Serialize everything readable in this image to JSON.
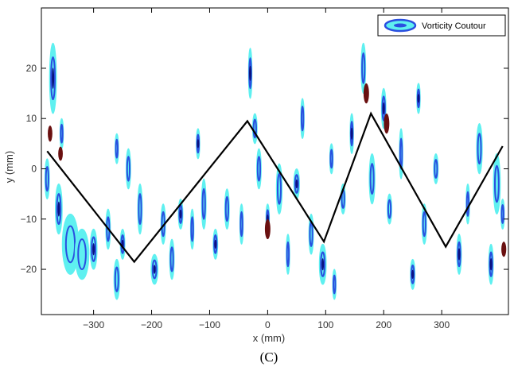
{
  "chart_data": {
    "type": "line",
    "title": "",
    "caption": "(C)",
    "xlabel": "x (mm)",
    "ylabel": "y (mm)",
    "xlim": [
      -390,
      415
    ],
    "ylim": [
      -29,
      32
    ],
    "x_ticks": [
      -300,
      -200,
      -100,
      0,
      100,
      200,
      300
    ],
    "x_tick_labels": [
      "−300",
      "−200",
      "−100",
      "0",
      "100",
      "200",
      "300"
    ],
    "y_ticks": [
      -20,
      -10,
      0,
      10,
      20
    ],
    "y_tick_labels": [
      "−20",
      "−10",
      "0",
      "10",
      "20"
    ],
    "grid": false,
    "legend": {
      "placement": "top-right",
      "entries": [
        "Vorticity Coutour"
      ]
    },
    "series": [
      {
        "kind": "path-line",
        "color": "#000000",
        "x": [
          -380,
          -230,
          -35,
          97,
          178,
          307,
          405
        ],
        "y": [
          3.5,
          -18.5,
          9.5,
          -14.5,
          11,
          -15.5,
          4.5
        ]
      }
    ],
    "contour_colors": {
      "outer": "#5ff0f0",
      "inner": "#2a4fe0",
      "core": "#0a1280",
      "opposite": "#6a1010"
    },
    "contour_blobs": [
      [
        -370,
        18,
        6,
        7
      ],
      [
        -355,
        7,
        3,
        3
      ],
      [
        -380,
        -2,
        4,
        4
      ],
      [
        -360,
        -8,
        6,
        5
      ],
      [
        -340,
        -15,
        14,
        6
      ],
      [
        -320,
        -17,
        12,
        5
      ],
      [
        -300,
        -16,
        6,
        4
      ],
      [
        -275,
        -12,
        4,
        4
      ],
      [
        -260,
        -22,
        5,
        4
      ],
      [
        -250,
        -15,
        4,
        3
      ],
      [
        -240,
        0,
        4,
        4
      ],
      [
        -220,
        -8,
        4,
        5
      ],
      [
        -195,
        -20,
        6,
        3
      ],
      [
        -180,
        -11,
        4,
        4
      ],
      [
        -165,
        -18,
        4,
        4
      ],
      [
        -150,
        -9,
        4,
        3
      ],
      [
        -130,
        -12,
        3,
        4
      ],
      [
        -110,
        -7,
        4,
        5
      ],
      [
        -90,
        -15,
        4,
        3
      ],
      [
        -70,
        -8,
        4,
        4
      ],
      [
        -45,
        -11,
        3,
        4
      ],
      [
        -30,
        19,
        3,
        5
      ],
      [
        -22,
        8,
        4,
        3
      ],
      [
        -15,
        0,
        4,
        4
      ],
      [
        0,
        -10,
        3,
        3
      ],
      [
        20,
        -4,
        5,
        5
      ],
      [
        35,
        -17,
        3,
        4
      ],
      [
        50,
        -3,
        5,
        3
      ],
      [
        60,
        10,
        3,
        4
      ],
      [
        75,
        -13,
        4,
        4
      ],
      [
        95,
        -19,
        6,
        4
      ],
      [
        115,
        -23,
        3,
        3
      ],
      [
        130,
        -6,
        4,
        3
      ],
      [
        145,
        7,
        3,
        4
      ],
      [
        165,
        20,
        4,
        5
      ],
      [
        180,
        -2,
        5,
        5
      ],
      [
        200,
        12,
        4,
        4
      ],
      [
        210,
        -8,
        4,
        3
      ],
      [
        230,
        3,
        3,
        5
      ],
      [
        250,
        -21,
        4,
        3
      ],
      [
        270,
        -11,
        4,
        4
      ],
      [
        290,
        0,
        4,
        3
      ],
      [
        330,
        -17,
        4,
        4
      ],
      [
        345,
        -7,
        3,
        4
      ],
      [
        365,
        4,
        5,
        5
      ],
      [
        385,
        -19,
        4,
        4
      ],
      [
        395,
        -3,
        6,
        6
      ],
      [
        405,
        -9,
        3,
        3
      ],
      [
        -120,
        5,
        3,
        3
      ],
      [
        110,
        2,
        3,
        3
      ],
      [
        -260,
        4,
        3,
        3
      ],
      [
        260,
        14,
        3,
        3
      ]
    ],
    "opposite_blobs": [
      [
        -375,
        7,
        1.2,
        1.6
      ],
      [
        -357,
        3,
        1.2,
        1.4
      ],
      [
        0,
        -12,
        2,
        2
      ],
      [
        170,
        15,
        2,
        2
      ],
      [
        205,
        9,
        2,
        2
      ],
      [
        407,
        -16,
        1.5,
        1.5
      ]
    ]
  }
}
